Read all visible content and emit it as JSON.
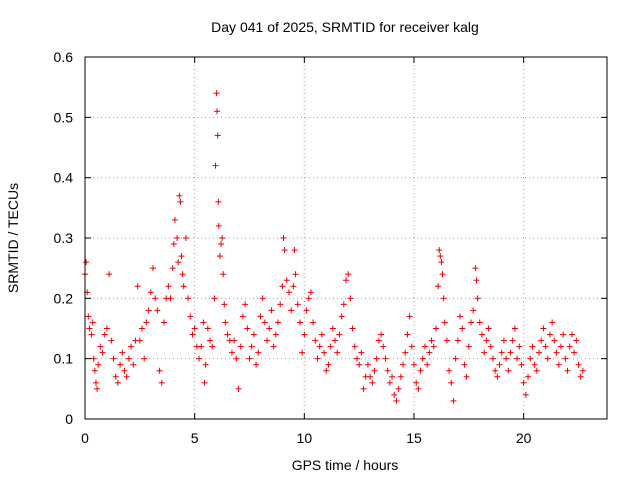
{
  "chart_data": {
    "type": "scatter",
    "title": "Day 041 of 2025, SRMTID for receiver kalg",
    "xlabel": "GPS time / hours",
    "ylabel": "SRMTID / TECUs",
    "xlim": [
      0,
      23.8
    ],
    "ylim": [
      0,
      0.6
    ],
    "xticks": [
      0,
      5,
      10,
      15,
      20
    ],
    "xtick_labels": [
      "0",
      "5",
      "10",
      "15",
      "20"
    ],
    "yticks": [
      0,
      0.1,
      0.2,
      0.3,
      0.4,
      0.5,
      0.6
    ],
    "ytick_labels": [
      "0",
      "0.1",
      "0.2",
      "0.3",
      "0.4",
      "0.5",
      "0.6"
    ],
    "grid": true,
    "marker": "+",
    "series": [
      {
        "name": "kalg",
        "color": "#ee0000",
        "points": [
          [
            0.0,
            0.24
          ],
          [
            0.05,
            0.26
          ],
          [
            0.1,
            0.21
          ],
          [
            0.15,
            0.17
          ],
          [
            0.2,
            0.15
          ],
          [
            0.3,
            0.14
          ],
          [
            0.35,
            0.16
          ],
          [
            0.4,
            0.1
          ],
          [
            0.45,
            0.08
          ],
          [
            0.5,
            0.06
          ],
          [
            0.55,
            0.05
          ],
          [
            0.6,
            0.09
          ],
          [
            0.7,
            0.12
          ],
          [
            0.8,
            0.11
          ],
          [
            0.9,
            0.14
          ],
          [
            1.0,
            0.15
          ],
          [
            1.1,
            0.24
          ],
          [
            1.2,
            0.13
          ],
          [
            1.3,
            0.1
          ],
          [
            1.4,
            0.07
          ],
          [
            1.5,
            0.06
          ],
          [
            1.6,
            0.09
          ],
          [
            1.7,
            0.11
          ],
          [
            1.8,
            0.08
          ],
          [
            1.9,
            0.07
          ],
          [
            2.0,
            0.1
          ],
          [
            2.1,
            0.12
          ],
          [
            2.2,
            0.09
          ],
          [
            2.3,
            0.13
          ],
          [
            2.4,
            0.22
          ],
          [
            2.5,
            0.13
          ],
          [
            2.6,
            0.15
          ],
          [
            2.7,
            0.1
          ],
          [
            2.8,
            0.16
          ],
          [
            2.9,
            0.18
          ],
          [
            3.0,
            0.21
          ],
          [
            3.1,
            0.25
          ],
          [
            3.2,
            0.2
          ],
          [
            3.3,
            0.18
          ],
          [
            3.4,
            0.08
          ],
          [
            3.5,
            0.06
          ],
          [
            3.6,
            0.16
          ],
          [
            3.7,
            0.2
          ],
          [
            3.8,
            0.22
          ],
          [
            3.9,
            0.2
          ],
          [
            4.0,
            0.25
          ],
          [
            4.05,
            0.29
          ],
          [
            4.1,
            0.33
          ],
          [
            4.2,
            0.3
          ],
          [
            4.25,
            0.26
          ],
          [
            4.3,
            0.37
          ],
          [
            4.35,
            0.36
          ],
          [
            4.4,
            0.27
          ],
          [
            4.45,
            0.24
          ],
          [
            4.5,
            0.22
          ],
          [
            4.6,
            0.3
          ],
          [
            4.7,
            0.2
          ],
          [
            4.8,
            0.17
          ],
          [
            4.9,
            0.14
          ],
          [
            5.0,
            0.15
          ],
          [
            5.1,
            0.12
          ],
          [
            5.2,
            0.1
          ],
          [
            5.3,
            0.12
          ],
          [
            5.4,
            0.16
          ],
          [
            5.45,
            0.06
          ],
          [
            5.5,
            0.09
          ],
          [
            5.6,
            0.15
          ],
          [
            5.7,
            0.13
          ],
          [
            5.8,
            0.12
          ],
          [
            5.9,
            0.2
          ],
          [
            5.95,
            0.42
          ],
          [
            6.0,
            0.54
          ],
          [
            6.02,
            0.51
          ],
          [
            6.05,
            0.47
          ],
          [
            6.08,
            0.36
          ],
          [
            6.1,
            0.32
          ],
          [
            6.15,
            0.27
          ],
          [
            6.2,
            0.29
          ],
          [
            6.25,
            0.3
          ],
          [
            6.3,
            0.24
          ],
          [
            6.35,
            0.19
          ],
          [
            6.4,
            0.16
          ],
          [
            6.5,
            0.14
          ],
          [
            6.6,
            0.13
          ],
          [
            6.7,
            0.11
          ],
          [
            6.8,
            0.13
          ],
          [
            6.9,
            0.1
          ],
          [
            7.0,
            0.05
          ],
          [
            7.1,
            0.12
          ],
          [
            7.2,
            0.17
          ],
          [
            7.3,
            0.19
          ],
          [
            7.4,
            0.15
          ],
          [
            7.5,
            0.1
          ],
          [
            7.6,
            0.12
          ],
          [
            7.7,
            0.14
          ],
          [
            7.8,
            0.09
          ],
          [
            7.9,
            0.11
          ],
          [
            8.0,
            0.17
          ],
          [
            8.1,
            0.2
          ],
          [
            8.2,
            0.16
          ],
          [
            8.3,
            0.13
          ],
          [
            8.4,
            0.15
          ],
          [
            8.5,
            0.18
          ],
          [
            8.6,
            0.12
          ],
          [
            8.7,
            0.14
          ],
          [
            8.8,
            0.16
          ],
          [
            8.9,
            0.19
          ],
          [
            9.0,
            0.22
          ],
          [
            9.05,
            0.3
          ],
          [
            9.1,
            0.28
          ],
          [
            9.2,
            0.23
          ],
          [
            9.3,
            0.21
          ],
          [
            9.4,
            0.18
          ],
          [
            9.5,
            0.22
          ],
          [
            9.55,
            0.28
          ],
          [
            9.6,
            0.24
          ],
          [
            9.7,
            0.19
          ],
          [
            9.8,
            0.16
          ],
          [
            9.9,
            0.11
          ],
          [
            10.0,
            0.14
          ],
          [
            10.1,
            0.18
          ],
          [
            10.2,
            0.2
          ],
          [
            10.3,
            0.21
          ],
          [
            10.4,
            0.16
          ],
          [
            10.5,
            0.13
          ],
          [
            10.6,
            0.1
          ],
          [
            10.7,
            0.12
          ],
          [
            10.8,
            0.14
          ],
          [
            10.9,
            0.11
          ],
          [
            11.0,
            0.08
          ],
          [
            11.1,
            0.09
          ],
          [
            11.2,
            0.12
          ],
          [
            11.3,
            0.15
          ],
          [
            11.4,
            0.13
          ],
          [
            11.5,
            0.11
          ],
          [
            11.6,
            0.14
          ],
          [
            11.7,
            0.17
          ],
          [
            11.8,
            0.19
          ],
          [
            11.9,
            0.23
          ],
          [
            12.0,
            0.24
          ],
          [
            12.1,
            0.2
          ],
          [
            12.2,
            0.15
          ],
          [
            12.3,
            0.12
          ],
          [
            12.4,
            0.1
          ],
          [
            12.5,
            0.09
          ],
          [
            12.6,
            0.11
          ],
          [
            12.7,
            0.05
          ],
          [
            12.8,
            0.07
          ],
          [
            12.9,
            0.09
          ],
          [
            13.0,
            0.07
          ],
          [
            13.1,
            0.06
          ],
          [
            13.2,
            0.08
          ],
          [
            13.3,
            0.1
          ],
          [
            13.4,
            0.13
          ],
          [
            13.5,
            0.14
          ],
          [
            13.6,
            0.12
          ],
          [
            13.7,
            0.1
          ],
          [
            13.8,
            0.08
          ],
          [
            13.9,
            0.06
          ],
          [
            14.0,
            0.07
          ],
          [
            14.1,
            0.04
          ],
          [
            14.2,
            0.03
          ],
          [
            14.3,
            0.05
          ],
          [
            14.4,
            0.07
          ],
          [
            14.5,
            0.09
          ],
          [
            14.6,
            0.11
          ],
          [
            14.7,
            0.14
          ],
          [
            14.8,
            0.17
          ],
          [
            14.9,
            0.12
          ],
          [
            15.0,
            0.09
          ],
          [
            15.1,
            0.06
          ],
          [
            15.2,
            0.05
          ],
          [
            15.3,
            0.08
          ],
          [
            15.4,
            0.1
          ],
          [
            15.5,
            0.12
          ],
          [
            15.6,
            0.09
          ],
          [
            15.7,
            0.11
          ],
          [
            15.8,
            0.13
          ],
          [
            15.9,
            0.12
          ],
          [
            16.0,
            0.15
          ],
          [
            16.1,
            0.22
          ],
          [
            16.15,
            0.28
          ],
          [
            16.2,
            0.27
          ],
          [
            16.25,
            0.26
          ],
          [
            16.3,
            0.24
          ],
          [
            16.35,
            0.2
          ],
          [
            16.4,
            0.16
          ],
          [
            16.5,
            0.13
          ],
          [
            16.6,
            0.08
          ],
          [
            16.7,
            0.06
          ],
          [
            16.8,
            0.03
          ],
          [
            16.9,
            0.1
          ],
          [
            17.0,
            0.13
          ],
          [
            17.1,
            0.17
          ],
          [
            17.2,
            0.15
          ],
          [
            17.3,
            0.09
          ],
          [
            17.4,
            0.07
          ],
          [
            17.5,
            0.12
          ],
          [
            17.6,
            0.16
          ],
          [
            17.7,
            0.18
          ],
          [
            17.8,
            0.25
          ],
          [
            17.85,
            0.23
          ],
          [
            17.9,
            0.2
          ],
          [
            18.0,
            0.16
          ],
          [
            18.1,
            0.14
          ],
          [
            18.2,
            0.11
          ],
          [
            18.3,
            0.13
          ],
          [
            18.4,
            0.15
          ],
          [
            18.5,
            0.12
          ],
          [
            18.6,
            0.1
          ],
          [
            18.7,
            0.08
          ],
          [
            18.8,
            0.07
          ],
          [
            18.9,
            0.09
          ],
          [
            19.0,
            0.11
          ],
          [
            19.1,
            0.13
          ],
          [
            19.2,
            0.1
          ],
          [
            19.3,
            0.08
          ],
          [
            19.4,
            0.11
          ],
          [
            19.5,
            0.13
          ],
          [
            19.6,
            0.15
          ],
          [
            19.7,
            0.1
          ],
          [
            19.8,
            0.12
          ],
          [
            19.9,
            0.09
          ],
          [
            20.0,
            0.06
          ],
          [
            20.1,
            0.04
          ],
          [
            20.2,
            0.07
          ],
          [
            20.3,
            0.1
          ],
          [
            20.4,
            0.12
          ],
          [
            20.5,
            0.09
          ],
          [
            20.6,
            0.08
          ],
          [
            20.7,
            0.11
          ],
          [
            20.8,
            0.13
          ],
          [
            20.9,
            0.15
          ],
          [
            21.0,
            0.12
          ],
          [
            21.1,
            0.1
          ],
          [
            21.2,
            0.14
          ],
          [
            21.3,
            0.16
          ],
          [
            21.4,
            0.13
          ],
          [
            21.5,
            0.11
          ],
          [
            21.6,
            0.09
          ],
          [
            21.7,
            0.12
          ],
          [
            21.8,
            0.14
          ],
          [
            21.9,
            0.1
          ],
          [
            22.0,
            0.08
          ],
          [
            22.1,
            0.12
          ],
          [
            22.2,
            0.14
          ],
          [
            22.3,
            0.11
          ],
          [
            22.4,
            0.13
          ],
          [
            22.5,
            0.09
          ],
          [
            22.6,
            0.07
          ],
          [
            22.7,
            0.08
          ]
        ]
      }
    ]
  }
}
